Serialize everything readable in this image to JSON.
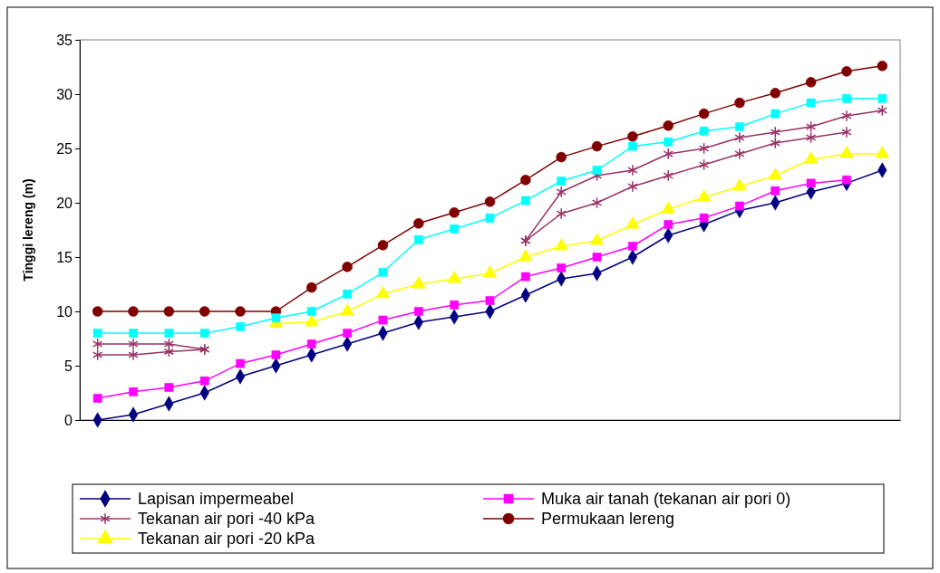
{
  "chart_data": {
    "type": "line",
    "ylabel": "Tinggi lereng (m)",
    "categories": [
      null,
      null,
      null,
      null,
      null,
      null,
      null,
      null,
      null,
      null,
      null,
      null,
      null,
      null,
      null,
      null,
      null,
      null,
      null,
      null,
      null,
      null,
      null
    ],
    "ylim": [
      0,
      35
    ],
    "yticks": [
      0,
      5,
      10,
      15,
      20,
      25,
      30,
      35
    ],
    "grid": false,
    "legend": "bottom",
    "series": [
      {
        "name": "Lapisan impermeabel",
        "color": "#000080",
        "marker": "diamond",
        "values": [
          0,
          0.5,
          1.5,
          2.5,
          4,
          5,
          6,
          7,
          8,
          9,
          9.5,
          10,
          11.5,
          13,
          13.5,
          15,
          17,
          18,
          19.3,
          20,
          21,
          21.8,
          23
        ]
      },
      {
        "name": "Muka air tanah (tekanan air pori 0)",
        "color": "#ff00ff",
        "marker": "square",
        "values": [
          2,
          2.6,
          3,
          3.6,
          5.2,
          6,
          7,
          8,
          9.2,
          10,
          10.6,
          11,
          13.2,
          14,
          15,
          16,
          18,
          18.6,
          19.7,
          21.1,
          21.8,
          22.1,
          null
        ]
      },
      {
        "name": "Tekanan air pori -40 kPa",
        "color": "#993366",
        "marker": "cross",
        "values": [
          7,
          7,
          7,
          6.5,
          null,
          null,
          null,
          null,
          null,
          null,
          null,
          null,
          16.5,
          21,
          22.5,
          23,
          24.5,
          25,
          26,
          26.5,
          27,
          28,
          28.5
        ]
      },
      {
        "name": "Permukaan lereng",
        "color": "#800000",
        "marker": "circle",
        "values": [
          10,
          10,
          10,
          10,
          10,
          10,
          12.2,
          14.1,
          16.1,
          18.1,
          19.1,
          20.1,
          22.1,
          24.2,
          25.2,
          26.1,
          27.1,
          28.2,
          29.2,
          30.1,
          31.1,
          32.1,
          32.6
        ]
      },
      {
        "name": "Tekanan air pori -20 kPa",
        "color": "#ffff00",
        "marker": "triangle",
        "values": [
          null,
          null,
          null,
          null,
          null,
          8.9,
          9,
          10,
          11.6,
          12.5,
          13,
          13.5,
          15,
          16,
          16.5,
          18,
          19.4,
          20.5,
          21.5,
          22.5,
          24,
          24.5,
          24.5
        ]
      },
      {
        "color": "#00ffff",
        "marker": "square",
        "values": [
          8,
          8,
          8,
          8,
          8.6,
          9.4,
          10,
          11.6,
          13.6,
          16.6,
          17.6,
          18.6,
          20.2,
          22,
          23,
          25.2,
          25.6,
          26.6,
          27,
          28.2,
          29.2,
          29.6,
          29.6
        ]
      },
      {
        "color": "#993366",
        "marker": "cross",
        "values": [
          6,
          6,
          6.3,
          6.5,
          null,
          null,
          null,
          null,
          null,
          null,
          null,
          null,
          16.5,
          19,
          20,
          21.5,
          22.5,
          23.5,
          24.5,
          25.5,
          26,
          26.5,
          null
        ]
      }
    ]
  }
}
